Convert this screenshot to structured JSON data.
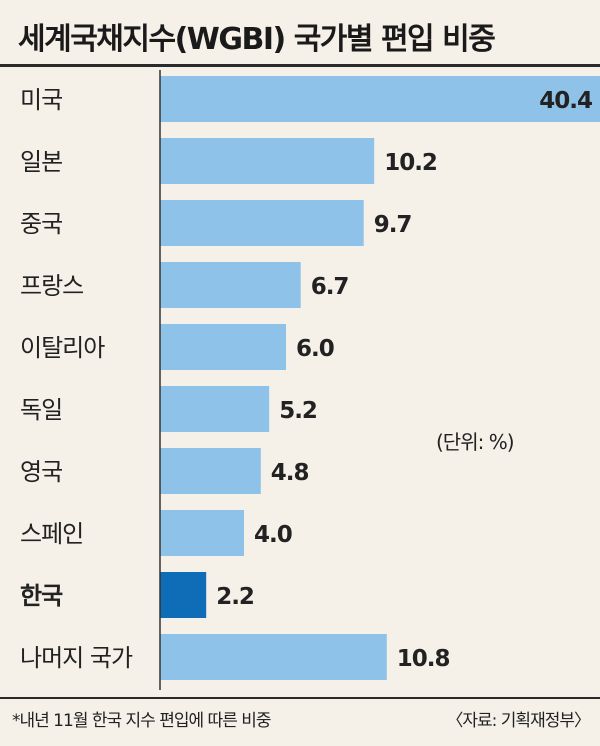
{
  "title": "세계국채지수(WGBI) 국가별 편입 비중",
  "unit_label": "(단위: %)",
  "footnote": "*내년 11월 한국 지수 편입에 따른 비중",
  "source": "〈자료: 기획재정부〉",
  "colors": {
    "bar": "#8fc2e8",
    "highlight": "#0f6cb7",
    "axis": "#333333"
  },
  "chart_data": {
    "type": "bar",
    "orientation": "horizontal",
    "title": "세계국채지수(WGBI) 국가별 편입 비중",
    "unit": "%",
    "axis_break": true,
    "categories": [
      "미국",
      "일본",
      "중국",
      "프랑스",
      "이탈리아",
      "독일",
      "영국",
      "스페인",
      "한국",
      "나머지 국가"
    ],
    "values": [
      40.4,
      10.2,
      9.7,
      6.7,
      6.0,
      5.2,
      4.8,
      4.0,
      2.2,
      10.8
    ],
    "value_labels": [
      "40.4",
      "10.2",
      "9.7",
      "6.7",
      "6.0",
      "5.2",
      "4.8",
      "4.0",
      "2.2",
      "10.8"
    ],
    "highlight": "한국"
  }
}
